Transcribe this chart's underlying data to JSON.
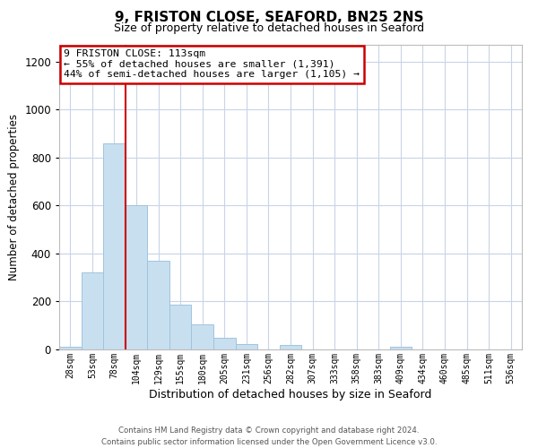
{
  "title": "9, FRISTON CLOSE, SEAFORD, BN25 2NS",
  "subtitle": "Size of property relative to detached houses in Seaford",
  "xlabel": "Distribution of detached houses by size in Seaford",
  "ylabel": "Number of detached properties",
  "bar_labels": [
    "28sqm",
    "53sqm",
    "78sqm",
    "104sqm",
    "129sqm",
    "155sqm",
    "180sqm",
    "205sqm",
    "231sqm",
    "256sqm",
    "282sqm",
    "307sqm",
    "333sqm",
    "358sqm",
    "383sqm",
    "409sqm",
    "434sqm",
    "460sqm",
    "485sqm",
    "511sqm",
    "536sqm"
  ],
  "bar_values": [
    10,
    320,
    860,
    600,
    370,
    185,
    105,
    47,
    22,
    0,
    20,
    0,
    0,
    0,
    0,
    12,
    0,
    0,
    0,
    0,
    0
  ],
  "bar_color": "#c8dff0",
  "bar_edge_color": "#a0c4de",
  "ylim": [
    0,
    1270
  ],
  "yticks": [
    0,
    200,
    400,
    600,
    800,
    1000,
    1200
  ],
  "red_line_x": 2.5,
  "annotation_title": "9 FRISTON CLOSE: 113sqm",
  "annotation_line1": "← 55% of detached houses are smaller (1,391)",
  "annotation_line2": "44% of semi-detached houses are larger (1,105) →",
  "annotation_box_color": "#ffffff",
  "annotation_box_edge_color": "#cc0000",
  "footer_line1": "Contains HM Land Registry data © Crown copyright and database right 2024.",
  "footer_line2": "Contains public sector information licensed under the Open Government Licence v3.0.",
  "background_color": "#ffffff",
  "grid_color": "#c8d4e8"
}
